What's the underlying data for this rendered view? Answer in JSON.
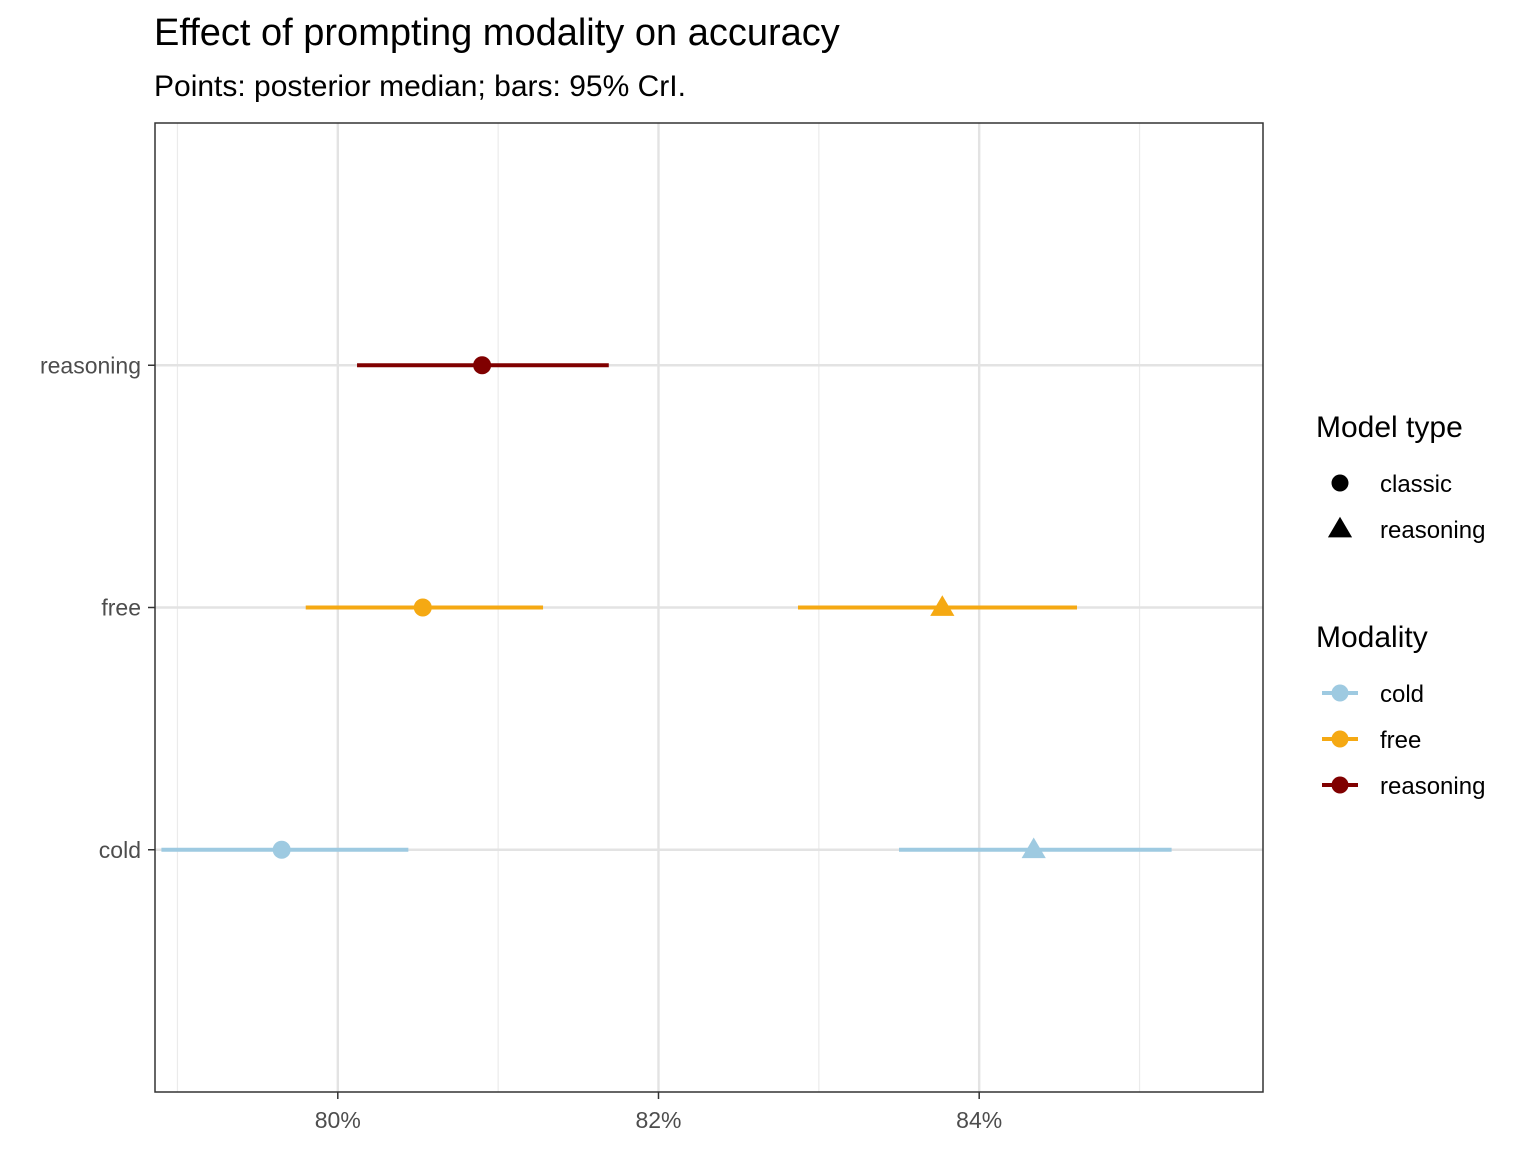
{
  "title": "Effect of prompting modality on accuracy",
  "subtitle": "Points: posterior median; bars: 95% CrI.",
  "chart_data": {
    "type": "scatter",
    "subtype": "dot-and-interval",
    "y_categories": [
      "cold",
      "free",
      "reasoning"
    ],
    "x_ticks": [
      {
        "value": 0.8,
        "label": "80%"
      },
      {
        "value": 0.82,
        "label": "82%"
      },
      {
        "value": 0.84,
        "label": "84%"
      }
    ],
    "xlim": [
      0.7886,
      0.8577
    ],
    "grid": true,
    "points": [
      {
        "modality": "cold",
        "model_type": "classic",
        "median": 0.7965,
        "lower": 0.789,
        "upper": 0.8044
      },
      {
        "modality": "cold",
        "model_type": "reasoning",
        "median": 0.8434,
        "lower": 0.835,
        "upper": 0.852
      },
      {
        "modality": "free",
        "model_type": "classic",
        "median": 0.8053,
        "lower": 0.798,
        "upper": 0.8128
      },
      {
        "modality": "free",
        "model_type": "reasoning",
        "median": 0.8377,
        "lower": 0.8287,
        "upper": 0.8461
      },
      {
        "modality": "reasoning",
        "model_type": "classic",
        "median": 0.809,
        "lower": 0.8012,
        "upper": 0.8169
      }
    ],
    "legend": {
      "position": "right",
      "shape": {
        "title": "Model type",
        "items": [
          {
            "label": "classic",
            "shape": "circle"
          },
          {
            "label": "reasoning",
            "shape": "triangle"
          }
        ]
      },
      "color": {
        "title": "Modality",
        "items": [
          {
            "label": "cold",
            "color": "#9ecae1"
          },
          {
            "label": "free",
            "color": "#f5a913"
          },
          {
            "label": "reasoning",
            "color": "#800000"
          }
        ]
      }
    },
    "colors": {
      "cold": "#9ecae1",
      "free": "#f5a913",
      "reasoning": "#800000"
    }
  }
}
